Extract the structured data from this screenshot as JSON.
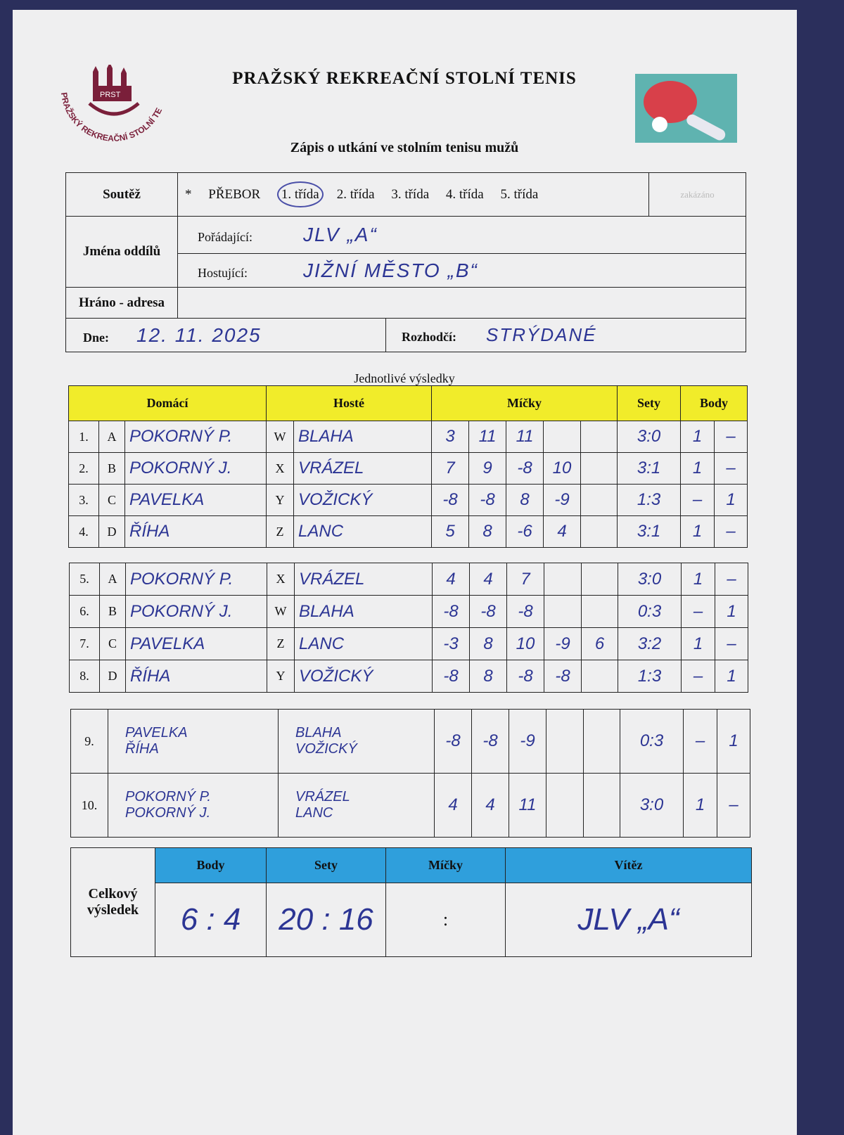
{
  "header": {
    "title": "PRAŽSKÝ  REKREAČNÍ  STOLNÍ  TENIS",
    "subtitle": "Zápis o utkání ve stolním tenisu mužů",
    "logo_text": "PRAŽSKÝ REKREAČNÍ STOLNÍ TENIS",
    "logo_abbr": "PRST"
  },
  "form": {
    "soutez_label": "Soutěž",
    "star": "*",
    "classes": [
      "PŘEBOR",
      "1. třída",
      "2. třída",
      "3. třída",
      "4. třída",
      "5. třída"
    ],
    "selected_class": "1. třída",
    "faded_box": "zakázáno",
    "jmena_label": "Jména  oddílů",
    "poradajici_label": "Pořádající:",
    "poradajici_value": "JLV „A“",
    "hostujici_label": "Hostující:",
    "hostujici_value": "JIŽNÍ MĚSTO „B“",
    "hrano_label": "Hráno - adresa",
    "hrano_value": "",
    "dne_label": "Dne:",
    "dne_value": "12. 11. 2025",
    "rozhodci_label": "Rozhodčí:",
    "rozhodci_value": "STRÝDANÉ"
  },
  "results": {
    "section_title": "Jednotlivé  výsledky",
    "headers": {
      "domaci": "Domácí",
      "hoste": "Hosté",
      "micky": "Míčky",
      "sety": "Sety",
      "body": "Body"
    },
    "block1": [
      {
        "no": "1.",
        "hl": "A",
        "home": "POKORNÝ P.",
        "gl": "W",
        "guest": "BLAHA",
        "balls": [
          "3",
          "11",
          "11",
          "",
          ""
        ],
        "sets": "3:0",
        "bh": "1",
        "bg": "–"
      },
      {
        "no": "2.",
        "hl": "B",
        "home": "POKORNÝ J.",
        "gl": "X",
        "guest": "VRÁZEL",
        "balls": [
          "7",
          "9",
          "-8",
          "10",
          ""
        ],
        "sets": "3:1",
        "bh": "1",
        "bg": "–"
      },
      {
        "no": "3.",
        "hl": "C",
        "home": "PAVELKA",
        "gl": "Y",
        "guest": "VOŽICKÝ",
        "balls": [
          "-8",
          "-8",
          "8",
          "-9",
          ""
        ],
        "sets": "1:3",
        "bh": "–",
        "bg": "1"
      },
      {
        "no": "4.",
        "hl": "D",
        "home": "ŘÍHA",
        "gl": "Z",
        "guest": "LANC",
        "balls": [
          "5",
          "8",
          "-6",
          "4",
          ""
        ],
        "sets": "3:1",
        "bh": "1",
        "bg": "–"
      }
    ],
    "block2": [
      {
        "no": "5.",
        "hl": "A",
        "home": "POKORNÝ P.",
        "gl": "X",
        "guest": "VRÁZEL",
        "balls": [
          "4",
          "4",
          "7",
          "",
          ""
        ],
        "sets": "3:0",
        "bh": "1",
        "bg": "–"
      },
      {
        "no": "6.",
        "hl": "B",
        "home": "POKORNÝ J.",
        "gl": "W",
        "guest": "BLAHA",
        "balls": [
          "-8",
          "-8",
          "-8",
          "",
          ""
        ],
        "sets": "0:3",
        "bh": "–",
        "bg": "1"
      },
      {
        "no": "7.",
        "hl": "C",
        "home": "PAVELKA",
        "gl": "Z",
        "guest": "LANC",
        "balls": [
          "-3",
          "8",
          "10",
          "-9",
          "6"
        ],
        "sets": "3:2",
        "bh": "1",
        "bg": "–"
      },
      {
        "no": "8.",
        "hl": "D",
        "home": "ŘÍHA",
        "gl": "Y",
        "guest": "VOŽICKÝ",
        "balls": [
          "-8",
          "8",
          "-8",
          "-8",
          ""
        ],
        "sets": "1:3",
        "bh": "–",
        "bg": "1"
      }
    ],
    "doubles": [
      {
        "no": "9.",
        "home": [
          "PAVELKA",
          "ŘÍHA"
        ],
        "guest": [
          "BLAHA",
          "VOŽICKÝ"
        ],
        "balls": [
          "-8",
          "-8",
          "-9",
          "",
          ""
        ],
        "sets": "0:3",
        "bh": "–",
        "bg": "1"
      },
      {
        "no": "10.",
        "home": [
          "POKORNÝ P.",
          "POKORNÝ J."
        ],
        "guest": [
          "VRÁZEL",
          "LANC"
        ],
        "balls": [
          "4",
          "4",
          "11",
          "",
          ""
        ],
        "sets": "3:0",
        "bh": "1",
        "bg": "–"
      }
    ]
  },
  "summary": {
    "label": "Celkový výsledek",
    "headers": {
      "body": "Body",
      "sety": "Sety",
      "micky": "Míčky",
      "vitez": "Vítěz"
    },
    "body": "6 : 4",
    "sety": "20 : 16",
    "micky": ":",
    "vitez": "JLV „A“"
  },
  "colors": {
    "header_yellow": "#f1ec2a",
    "header_blue": "#2f9fdc",
    "ink": "#2c3594",
    "background": "#2b2f5c"
  }
}
